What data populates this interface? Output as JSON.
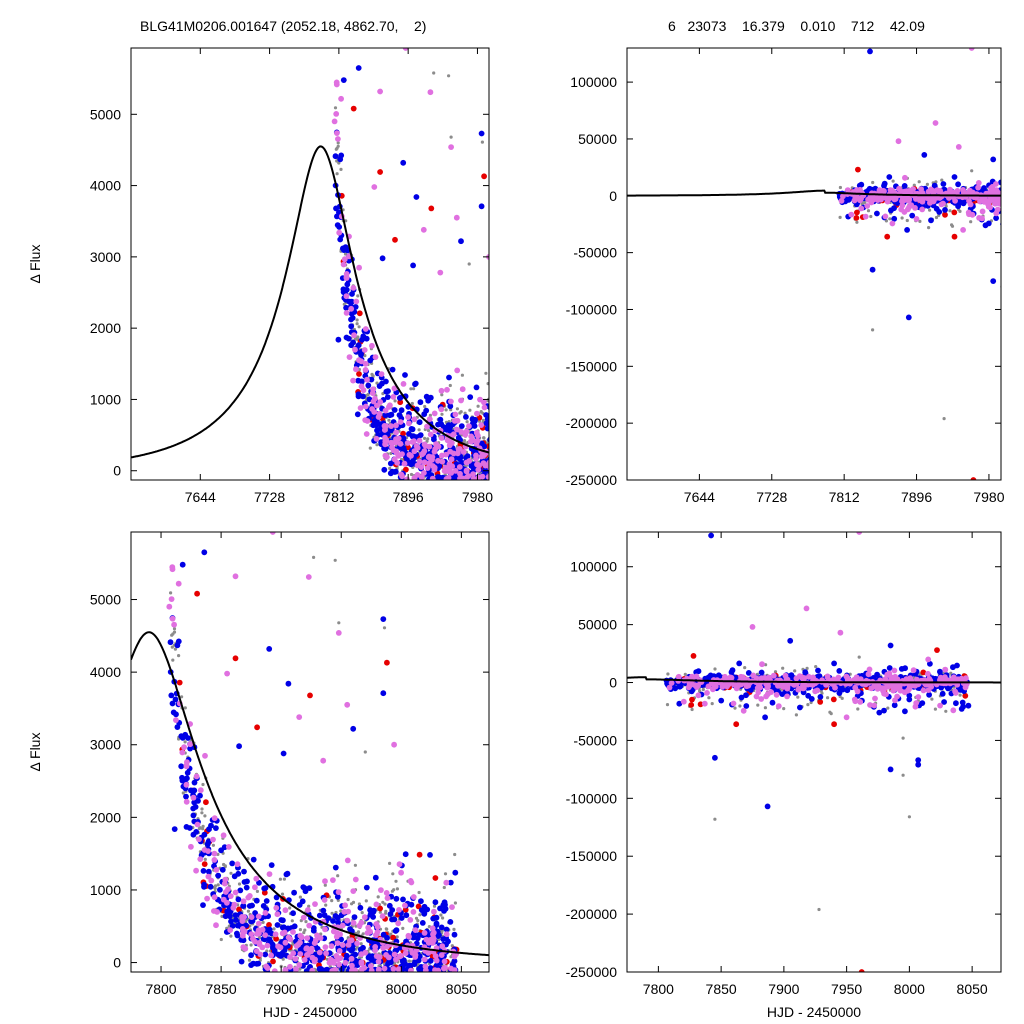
{
  "header": {
    "left": "BLG41M0206.001647 (2052.18, 4862.70,    2)",
    "right": "6   23073    16.379    0.010    712    42.09"
  },
  "colors": {
    "model": "#000000",
    "blue": "#0000e6",
    "red": "#e60000",
    "pink": "#e070e0",
    "gray": "#8c8c8c"
  },
  "chart_data": [
    {
      "id": "top-left",
      "type": "scatter",
      "title": "",
      "xlabel": "",
      "ylabel": "Δ Flux",
      "xlim": [
        7560,
        7994
      ],
      "ylim": [
        -130,
        5930
      ],
      "xticks": [
        7644,
        7728,
        7812,
        7896,
        7980
      ],
      "yticks": [
        0,
        1000,
        2000,
        3000,
        4000,
        5000
      ],
      "model": {
        "t0": 7790,
        "peak": 4550,
        "tau": 45
      },
      "grid": false,
      "legend": "none"
    },
    {
      "id": "top-right",
      "type": "scatter",
      "title": "",
      "xlabel": "",
      "ylabel": "",
      "xlim": [
        7560,
        7994
      ],
      "ylim": [
        -250000,
        130000
      ],
      "xticks": [
        7644,
        7728,
        7812,
        7896,
        7980
      ],
      "yticks": [
        100000,
        50000,
        0,
        -50000,
        -100000,
        -150000,
        -200000,
        -250000
      ],
      "model": {
        "t0": 7790,
        "peak": 4550,
        "tau": 45
      },
      "grid": false,
      "legend": "none"
    },
    {
      "id": "bottom-left",
      "type": "scatter",
      "title": "",
      "xlabel": "HJD - 2450000",
      "ylabel": "Δ Flux",
      "xlim": [
        7775,
        8073
      ],
      "ylim": [
        -130,
        5930
      ],
      "xticks": [
        7800,
        7850,
        7900,
        7950,
        8000,
        8050
      ],
      "yticks": [
        0,
        1000,
        2000,
        3000,
        4000,
        5000
      ],
      "model": {
        "t0": 7790,
        "peak": 4550,
        "tau": 45
      },
      "grid": false,
      "legend": "none"
    },
    {
      "id": "bottom-right",
      "type": "scatter",
      "title": "",
      "xlabel": "HJD - 2450000",
      "ylabel": "",
      "xlim": [
        7775,
        8073
      ],
      "ylim": [
        -250000,
        130000
      ],
      "xticks": [
        7800,
        7850,
        7900,
        7950,
        8000,
        8050
      ],
      "yticks": [
        100000,
        50000,
        0,
        -50000,
        -100000,
        -150000,
        -200000,
        -250000
      ],
      "model": {
        "t0": 7790,
        "peak": 4550,
        "tau": 45
      },
      "grid": false,
      "legend": "none"
    }
  ],
  "outliers": {
    "flux": [
      {
        "x": 7818,
        "y": 5480,
        "c": "blue"
      },
      {
        "x": 7836,
        "y": 5650,
        "c": "blue"
      },
      {
        "x": 7830,
        "y": 5080,
        "c": "red"
      },
      {
        "x": 7862,
        "y": 5320,
        "c": "pink"
      },
      {
        "x": 7893,
        "y": 5930,
        "c": "pink"
      },
      {
        "x": 7927,
        "y": 5580,
        "c": "gray"
      },
      {
        "x": 7945,
        "y": 5540,
        "c": "gray"
      },
      {
        "x": 7923,
        "y": 5310,
        "c": "pink"
      },
      {
        "x": 7890,
        "y": 4320,
        "c": "blue"
      },
      {
        "x": 7862,
        "y": 4190,
        "c": "red"
      },
      {
        "x": 7985,
        "y": 4730,
        "c": "blue"
      },
      {
        "x": 7986,
        "y": 4610,
        "c": "gray"
      },
      {
        "x": 7948,
        "y": 4540,
        "c": "pink"
      },
      {
        "x": 7948,
        "y": 4680,
        "c": "gray"
      },
      {
        "x": 7988,
        "y": 4130,
        "c": "red"
      },
      {
        "x": 7906,
        "y": 3840,
        "c": "blue"
      },
      {
        "x": 7924,
        "y": 3680,
        "c": "red"
      },
      {
        "x": 7960,
        "y": 3220,
        "c": "blue"
      },
      {
        "x": 7985,
        "y": 3710,
        "c": "blue"
      },
      {
        "x": 7955,
        "y": 3550,
        "c": "pink"
      },
      {
        "x": 7994,
        "y": 3000,
        "c": "pink"
      },
      {
        "x": 7855,
        "y": 3980,
        "c": "pink"
      },
      {
        "x": 7880,
        "y": 3240,
        "c": "red"
      },
      {
        "x": 7915,
        "y": 3380,
        "c": "pink"
      },
      {
        "x": 7970,
        "y": 2900,
        "c": "gray"
      },
      {
        "x": 7865,
        "y": 2980,
        "c": "blue"
      },
      {
        "x": 7902,
        "y": 2880,
        "c": "blue"
      },
      {
        "x": 7935,
        "y": 2780,
        "c": "pink"
      }
    ],
    "resid": [
      {
        "x": 7842,
        "y": 127000,
        "c": "blue"
      },
      {
        "x": 7960,
        "y": 130000,
        "c": "pink"
      },
      {
        "x": 7918,
        "y": 64000,
        "c": "pink"
      },
      {
        "x": 7945,
        "y": 43000,
        "c": "pink"
      },
      {
        "x": 7875,
        "y": 48000,
        "c": "pink"
      },
      {
        "x": 7985,
        "y": 32000,
        "c": "blue"
      },
      {
        "x": 7905,
        "y": 36000,
        "c": "blue"
      },
      {
        "x": 8022,
        "y": 28000,
        "c": "red"
      },
      {
        "x": 7828,
        "y": 23000,
        "c": "red"
      },
      {
        "x": 8015,
        "y": 20000,
        "c": "pink"
      },
      {
        "x": 7960,
        "y": 22000,
        "c": "gray"
      },
      {
        "x": 7845,
        "y": -65000,
        "c": "blue"
      },
      {
        "x": 7887,
        "y": -107000,
        "c": "blue"
      },
      {
        "x": 7985,
        "y": -75000,
        "c": "blue"
      },
      {
        "x": 8007,
        "y": -67000,
        "c": "blue"
      },
      {
        "x": 8007,
        "y": -71000,
        "c": "blue"
      },
      {
        "x": 7995,
        "y": -80000,
        "c": "gray"
      },
      {
        "x": 7845,
        "y": -118000,
        "c": "gray"
      },
      {
        "x": 8000,
        "y": -116000,
        "c": "gray"
      },
      {
        "x": 7928,
        "y": -196000,
        "c": "gray"
      },
      {
        "x": 7962,
        "y": -250000,
        "c": "red"
      },
      {
        "x": 7862,
        "y": -36000,
        "c": "red"
      },
      {
        "x": 7885,
        "y": -30000,
        "c": "blue"
      },
      {
        "x": 7950,
        "y": -30000,
        "c": "pink"
      },
      {
        "x": 7976,
        "y": -26000,
        "c": "blue"
      },
      {
        "x": 8047,
        "y": -20000,
        "c": "blue"
      },
      {
        "x": 8035,
        "y": -24000,
        "c": "pink"
      },
      {
        "x": 7910,
        "y": -28000,
        "c": "gray"
      },
      {
        "x": 7940,
        "y": -36000,
        "c": "red"
      },
      {
        "x": 7995,
        "y": -48000,
        "c": "gray"
      }
    ]
  }
}
